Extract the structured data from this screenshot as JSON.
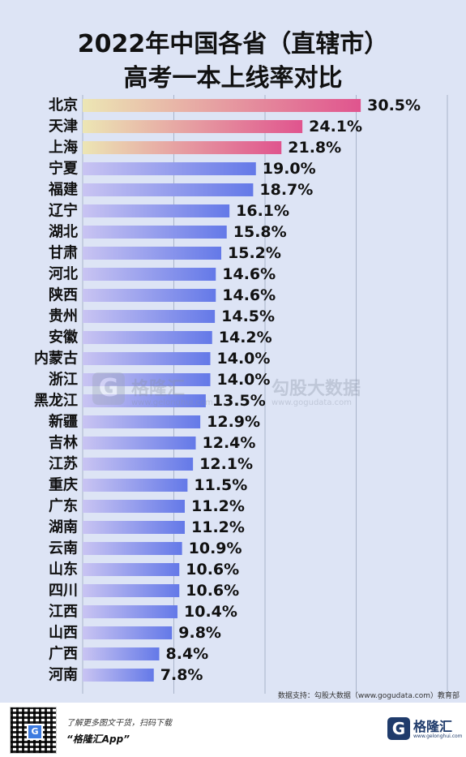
{
  "header": {
    "title_line1": "2022年中国各省（直辖市）",
    "title_line2": "高考一本上线率对比"
  },
  "chart_data": {
    "type": "bar",
    "orientation": "horizontal",
    "categories": [
      "北京",
      "天津",
      "上海",
      "宁夏",
      "福建",
      "辽宁",
      "湖北",
      "甘肃",
      "河北",
      "陕西",
      "贵州",
      "安徽",
      "内蒙古",
      "浙江",
      "黑龙江",
      "新疆",
      "吉林",
      "江苏",
      "重庆",
      "广东",
      "湖南",
      "云南",
      "山东",
      "四川",
      "江西",
      "山西",
      "广西",
      "河南"
    ],
    "values": [
      30.5,
      24.1,
      21.8,
      19.0,
      18.7,
      16.1,
      15.8,
      15.2,
      14.6,
      14.6,
      14.5,
      14.2,
      14.0,
      14.0,
      13.5,
      12.9,
      12.4,
      12.1,
      11.5,
      11.2,
      11.2,
      10.9,
      10.6,
      10.6,
      10.4,
      9.8,
      8.4,
      7.8
    ],
    "value_labels": [
      "30.5%",
      "24.1%",
      "21.8%",
      "19.0%",
      "18.7%",
      "16.1%",
      "15.8%",
      "15.2%",
      "14.6%",
      "14.6%",
      "14.5%",
      "14.2%",
      "14.0%",
      "14.0%",
      "13.5%",
      "12.9%",
      "12.4%",
      "12.1%",
      "11.5%",
      "11.2%",
      "11.2%",
      "10.9%",
      "10.6%",
      "10.6%",
      "10.4%",
      "9.8%",
      "8.4%",
      "7.8%"
    ],
    "highlight_count": 3,
    "xlim": [
      0,
      40
    ],
    "grid": true,
    "colors": {
      "highlight_start": "#ece6b4",
      "highlight_end": "#e0548e",
      "normal_start": "#c9c4f2",
      "normal_end": "#6479e8",
      "grid": "#a9b3c9"
    }
  },
  "watermark": {
    "logo_letter": "G",
    "name": "格隆汇",
    "url": "www.gelonghui.com",
    "name2": "勾股大数据",
    "url2": "www.gogudata.com"
  },
  "source": "数据支持：勾股大数据（www.gogudata.com）教育部",
  "footer": {
    "qr_letter": "G",
    "promo_line1": "了解更多图文干货，扫码下载",
    "promo_line2": "“格隆汇App”",
    "logo_letter": "G",
    "logo_name": "格隆汇",
    "logo_url": "www.gelonghui.com"
  }
}
